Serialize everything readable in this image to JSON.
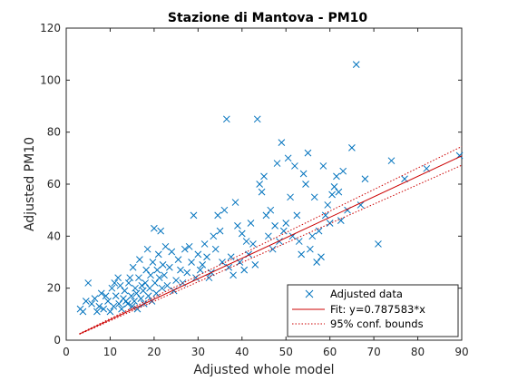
{
  "chart_data": {
    "type": "scatter",
    "title": "Stazione di Mantova - PM10",
    "xlabel": "Adjusted whole model",
    "ylabel": "Adjusted PM10",
    "xlim": [
      0,
      90
    ],
    "ylim": [
      0,
      120
    ],
    "xticks": [
      "0",
      "10",
      "20",
      "30",
      "40",
      "50",
      "60",
      "70",
      "80",
      "90"
    ],
    "yticks": [
      "0",
      "20",
      "40",
      "60",
      "80",
      "100",
      "120"
    ],
    "grid": false,
    "legend_position": "bottom-right",
    "colors": {
      "data": "#0072bd",
      "fit": "#cc0000",
      "bounds": "#cc0000"
    },
    "series": [
      {
        "name": "Adjusted data",
        "marker": "x",
        "points": [
          [
            3.2,
            12
          ],
          [
            3.8,
            11
          ],
          [
            4.5,
            15
          ],
          [
            5,
            22
          ],
          [
            5.8,
            14
          ],
          [
            6.5,
            16
          ],
          [
            7,
            11
          ],
          [
            7.5,
            13
          ],
          [
            8,
            18
          ],
          [
            8.5,
            12
          ],
          [
            9,
            17
          ],
          [
            9.5,
            15
          ],
          [
            10,
            11
          ],
          [
            10.4,
            20
          ],
          [
            10.8,
            13
          ],
          [
            11,
            22
          ],
          [
            11.3,
            17
          ],
          [
            11.8,
            24
          ],
          [
            12,
            14
          ],
          [
            12.3,
            21
          ],
          [
            12.6,
            12
          ],
          [
            13,
            16
          ],
          [
            13.3,
            19
          ],
          [
            13.6,
            15
          ],
          [
            14,
            14
          ],
          [
            14.2,
            22
          ],
          [
            14.5,
            24
          ],
          [
            14.8,
            17
          ],
          [
            15,
            13
          ],
          [
            15.2,
            28
          ],
          [
            15.5,
            15
          ],
          [
            15.7,
            20
          ],
          [
            16,
            18
          ],
          [
            16.2,
            12
          ],
          [
            16.5,
            24
          ],
          [
            16.7,
            31
          ],
          [
            17,
            16
          ],
          [
            17.2,
            21
          ],
          [
            17.5,
            19
          ],
          [
            17.7,
            14
          ],
          [
            18,
            22
          ],
          [
            18.2,
            27
          ],
          [
            18.5,
            35
          ],
          [
            18.7,
            17
          ],
          [
            19,
            20
          ],
          [
            19.2,
            25
          ],
          [
            19.5,
            15
          ],
          [
            19.7,
            30
          ],
          [
            20,
            43
          ],
          [
            20.2,
            22
          ],
          [
            20.5,
            18
          ],
          [
            20.7,
            27
          ],
          [
            21,
            33
          ],
          [
            21.2,
            24
          ],
          [
            21.5,
            42
          ],
          [
            21.8,
            20
          ],
          [
            22,
            29
          ],
          [
            22.3,
            25
          ],
          [
            22.6,
            36
          ],
          [
            23,
            21
          ],
          [
            23.5,
            28
          ],
          [
            24,
            34
          ],
          [
            24.5,
            19
          ],
          [
            25,
            23
          ],
          [
            25.5,
            31
          ],
          [
            26,
            27
          ],
          [
            26.5,
            22
          ],
          [
            27,
            35
          ],
          [
            27.5,
            26
          ],
          [
            28,
            36
          ],
          [
            28.5,
            30
          ],
          [
            29,
            48
          ],
          [
            29.5,
            24
          ],
          [
            30,
            33
          ],
          [
            30.5,
            27
          ],
          [
            31,
            29
          ],
          [
            31.5,
            37
          ],
          [
            32,
            32
          ],
          [
            32.5,
            24
          ],
          [
            33,
            26
          ],
          [
            33.5,
            40
          ],
          [
            34,
            35
          ],
          [
            34.5,
            48
          ],
          [
            35,
            42
          ],
          [
            35.5,
            30
          ],
          [
            36,
            50
          ],
          [
            36.5,
            85
          ],
          [
            37,
            28
          ],
          [
            37.5,
            32
          ],
          [
            38,
            25
          ],
          [
            38.5,
            53
          ],
          [
            39,
            44
          ],
          [
            39.5,
            30
          ],
          [
            40,
            41
          ],
          [
            40.5,
            27
          ],
          [
            41,
            38
          ],
          [
            41.5,
            33
          ],
          [
            42,
            45
          ],
          [
            42.5,
            37
          ],
          [
            43,
            29
          ],
          [
            43.5,
            85
          ],
          [
            44,
            60
          ],
          [
            44.5,
            57
          ],
          [
            45,
            63
          ],
          [
            45.5,
            48
          ],
          [
            46,
            40
          ],
          [
            46.5,
            50
          ],
          [
            47,
            35
          ],
          [
            47.5,
            44
          ],
          [
            48,
            68
          ],
          [
            48.5,
            38
          ],
          [
            49,
            76
          ],
          [
            49.5,
            42
          ],
          [
            50,
            45
          ],
          [
            50.5,
            70
          ],
          [
            51,
            55
          ],
          [
            51.5,
            40
          ],
          [
            52,
            67
          ],
          [
            52.5,
            48
          ],
          [
            53,
            38
          ],
          [
            53.5,
            33
          ],
          [
            54,
            64
          ],
          [
            54.5,
            60
          ],
          [
            55,
            72
          ],
          [
            55.5,
            35
          ],
          [
            56,
            40
          ],
          [
            56.5,
            55
          ],
          [
            57,
            30
          ],
          [
            57.5,
            42
          ],
          [
            58,
            32
          ],
          [
            58.5,
            67
          ],
          [
            59,
            48
          ],
          [
            59.5,
            52
          ],
          [
            60,
            45
          ],
          [
            60.5,
            56
          ],
          [
            61,
            59
          ],
          [
            61.5,
            63
          ],
          [
            62,
            57
          ],
          [
            62.5,
            46
          ],
          [
            63,
            65
          ],
          [
            64,
            50
          ],
          [
            65,
            74
          ],
          [
            66,
            106
          ],
          [
            67,
            52
          ],
          [
            68,
            62
          ],
          [
            71,
            37
          ],
          [
            74,
            69
          ],
          [
            77,
            62
          ],
          [
            82,
            66
          ],
          [
            89.5,
            71
          ]
        ]
      },
      {
        "name": "Fit: y=0.787583*x",
        "slope": 0.787583,
        "x_range": [
          3,
          90
        ]
      },
      {
        "name": "95% conf. bounds",
        "slope_low": 0.7475,
        "slope_high": 0.8275,
        "x_range": [
          3,
          90
        ]
      }
    ]
  }
}
